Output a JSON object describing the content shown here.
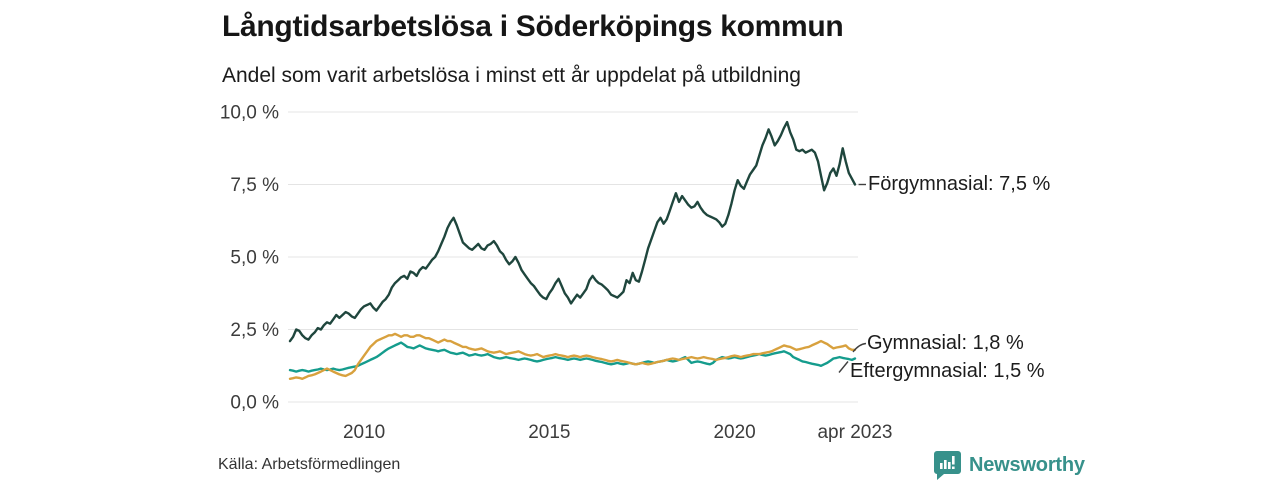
{
  "header": {
    "title": "Långtidsarbetslösa i Söderköpings kommun",
    "subtitle": "Andel som varit arbetslösa i minst ett år uppdelat på utbildning"
  },
  "source": {
    "label": "Källa: Arbetsförmedlingen"
  },
  "branding": {
    "name": "Newsworthy",
    "logo_icon": "bar-chart-speech-bubble-icon",
    "color": "#37918b"
  },
  "colors": {
    "grid": "#e4e4e4",
    "axis_text": "#3c3c3c",
    "annotation_text": "#1c1c1c",
    "connector": "#3f3f3f",
    "background": "#ffffff"
  },
  "chart_data": {
    "type": "line",
    "title": "Långtidsarbetslösa i Söderköpings kommun",
    "subtitle": "Andel som varit arbetslösa i minst ett år uppdelat på utbildning",
    "xlabel": "",
    "ylabel": "",
    "unit": "%",
    "grid": true,
    "legend_position": "end-of-line labels, right side",
    "x_axis": {
      "range": [
        2008,
        2023.25
      ],
      "ticks": [
        {
          "t": 2010,
          "label": "2010"
        },
        {
          "t": 2015,
          "label": "2015"
        },
        {
          "t": 2020,
          "label": "2020"
        },
        {
          "t": 2023.25,
          "label": "apr 2023"
        }
      ]
    },
    "y_axis": {
      "range": [
        0,
        10
      ],
      "ticks": [
        {
          "v": 10,
          "label": "10,0 %"
        },
        {
          "v": 7.5,
          "label": "7,5 %"
        },
        {
          "v": 5,
          "label": "5,0 %"
        },
        {
          "v": 2.5,
          "label": "2,5 %"
        },
        {
          "v": 0,
          "label": "0,0 %"
        }
      ]
    },
    "series": [
      {
        "id": "forgymnasial",
        "name": "Förgymnasial",
        "end_label": "Förgymnasial: 7,5 %",
        "end_value": 7.5,
        "color": "#1f463d",
        "start": 2008,
        "step_months": 1,
        "values": [
          2.1,
          2.25,
          2.5,
          2.45,
          2.3,
          2.2,
          2.15,
          2.3,
          2.4,
          2.55,
          2.5,
          2.65,
          2.75,
          2.7,
          2.85,
          3.0,
          2.9,
          3.0,
          3.1,
          3.05,
          2.95,
          2.9,
          3.05,
          3.2,
          3.3,
          3.35,
          3.4,
          3.25,
          3.15,
          3.3,
          3.45,
          3.55,
          3.7,
          3.95,
          4.1,
          4.2,
          4.3,
          4.35,
          4.25,
          4.5,
          4.45,
          4.35,
          4.55,
          4.65,
          4.6,
          4.75,
          4.9,
          5.0,
          5.2,
          5.45,
          5.7,
          6.0,
          6.2,
          6.35,
          6.1,
          5.8,
          5.5,
          5.4,
          5.3,
          5.25,
          5.35,
          5.45,
          5.3,
          5.25,
          5.4,
          5.45,
          5.55,
          5.4,
          5.2,
          5.1,
          4.9,
          4.75,
          4.85,
          5.0,
          4.8,
          4.55,
          4.4,
          4.25,
          4.1,
          4.0,
          3.85,
          3.7,
          3.6,
          3.55,
          3.75,
          3.9,
          4.1,
          4.25,
          4.0,
          3.75,
          3.6,
          3.4,
          3.55,
          3.7,
          3.6,
          3.75,
          3.9,
          4.2,
          4.35,
          4.2,
          4.1,
          4.05,
          3.95,
          3.85,
          3.7,
          3.65,
          3.6,
          3.7,
          3.8,
          4.2,
          4.1,
          4.45,
          4.2,
          4.15,
          4.5,
          4.9,
          5.3,
          5.6,
          5.9,
          6.2,
          6.35,
          6.15,
          6.3,
          6.6,
          6.9,
          7.2,
          6.9,
          7.1,
          6.95,
          6.8,
          6.7,
          6.75,
          6.9,
          6.7,
          6.55,
          6.45,
          6.4,
          6.35,
          6.3,
          6.2,
          6.05,
          6.15,
          6.45,
          6.85,
          7.3,
          7.65,
          7.45,
          7.35,
          7.6,
          7.85,
          8.0,
          8.15,
          8.5,
          8.85,
          9.1,
          9.4,
          9.15,
          8.85,
          9.0,
          9.2,
          9.45,
          9.65,
          9.3,
          9.05,
          8.7,
          8.65,
          8.7,
          8.6,
          8.65,
          8.7,
          8.6,
          8.3,
          7.8,
          7.3,
          7.55,
          7.9,
          8.05,
          7.8,
          8.2,
          8.75,
          8.3,
          7.9,
          7.7,
          7.5
        ]
      },
      {
        "id": "gymnasial",
        "name": "Gymnasial",
        "end_label": "Gymnasial: 1,8 %",
        "end_value": 1.8,
        "color": "#d8a13e",
        "start": 2008,
        "step_months": 1,
        "values": [
          0.8,
          0.82,
          0.85,
          0.83,
          0.8,
          0.85,
          0.9,
          0.92,
          0.95,
          1.0,
          1.05,
          1.1,
          1.15,
          1.1,
          1.05,
          1.0,
          0.95,
          0.92,
          0.9,
          0.95,
          1.0,
          1.1,
          1.3,
          1.45,
          1.6,
          1.75,
          1.9,
          2.0,
          2.1,
          2.15,
          2.2,
          2.25,
          2.3,
          2.3,
          2.35,
          2.3,
          2.25,
          2.3,
          2.3,
          2.25,
          2.25,
          2.3,
          2.3,
          2.25,
          2.2,
          2.2,
          2.15,
          2.1,
          2.05,
          2.1,
          2.15,
          2.1,
          2.1,
          2.05,
          2.0,
          1.95,
          1.9,
          1.9,
          1.85,
          1.82,
          1.8,
          1.82,
          1.85,
          1.8,
          1.75,
          1.72,
          1.7,
          1.72,
          1.75,
          1.7,
          1.65,
          1.68,
          1.7,
          1.72,
          1.75,
          1.7,
          1.65,
          1.62,
          1.6,
          1.62,
          1.65,
          1.6,
          1.55,
          1.58,
          1.6,
          1.62,
          1.65,
          1.62,
          1.6,
          1.58,
          1.55,
          1.58,
          1.6,
          1.58,
          1.55,
          1.58,
          1.6,
          1.58,
          1.55,
          1.52,
          1.5,
          1.48,
          1.45,
          1.42,
          1.4,
          1.42,
          1.45,
          1.42,
          1.4,
          1.38,
          1.35,
          1.32,
          1.3,
          1.32,
          1.35,
          1.32,
          1.3,
          1.32,
          1.35,
          1.38,
          1.4,
          1.42,
          1.45,
          1.48,
          1.5,
          1.48,
          1.45,
          1.48,
          1.5,
          1.52,
          1.55,
          1.52,
          1.5,
          1.52,
          1.55,
          1.52,
          1.5,
          1.48,
          1.45,
          1.48,
          1.5,
          1.52,
          1.55,
          1.58,
          1.6,
          1.58,
          1.55,
          1.58,
          1.6,
          1.62,
          1.65,
          1.65,
          1.65,
          1.68,
          1.7,
          1.72,
          1.75,
          1.8,
          1.85,
          1.9,
          1.95,
          1.92,
          1.9,
          1.85,
          1.8,
          1.82,
          1.85,
          1.88,
          1.9,
          1.95,
          2.0,
          2.05,
          2.1,
          2.05,
          2.0,
          1.92,
          1.85,
          1.88,
          1.9,
          1.92,
          1.95,
          1.85,
          1.8,
          1.8
        ]
      },
      {
        "id": "eftergymnasial",
        "name": "Eftergymnasial",
        "end_label": "Eftergymnasial: 1,5 %",
        "end_value": 1.5,
        "color": "#159c8d",
        "start": 2008,
        "step_months": 1,
        "values": [
          1.1,
          1.08,
          1.05,
          1.08,
          1.1,
          1.08,
          1.05,
          1.08,
          1.1,
          1.12,
          1.15,
          1.12,
          1.1,
          1.12,
          1.15,
          1.12,
          1.1,
          1.12,
          1.15,
          1.18,
          1.2,
          1.22,
          1.25,
          1.3,
          1.35,
          1.4,
          1.45,
          1.5,
          1.55,
          1.62,
          1.7,
          1.78,
          1.85,
          1.9,
          1.95,
          2.0,
          2.05,
          1.98,
          1.9,
          1.88,
          1.85,
          1.9,
          1.95,
          1.9,
          1.85,
          1.82,
          1.8,
          1.78,
          1.75,
          1.78,
          1.8,
          1.75,
          1.7,
          1.68,
          1.65,
          1.68,
          1.7,
          1.65,
          1.6,
          1.62,
          1.65,
          1.62,
          1.6,
          1.62,
          1.65,
          1.6,
          1.55,
          1.52,
          1.5,
          1.52,
          1.55,
          1.52,
          1.5,
          1.48,
          1.45,
          1.48,
          1.5,
          1.48,
          1.45,
          1.42,
          1.4,
          1.42,
          1.45,
          1.48,
          1.5,
          1.52,
          1.55,
          1.52,
          1.5,
          1.48,
          1.45,
          1.48,
          1.5,
          1.48,
          1.45,
          1.48,
          1.5,
          1.48,
          1.45,
          1.42,
          1.4,
          1.38,
          1.35,
          1.32,
          1.3,
          1.32,
          1.35,
          1.32,
          1.3,
          1.32,
          1.35,
          1.32,
          1.3,
          1.32,
          1.35,
          1.38,
          1.4,
          1.38,
          1.35,
          1.38,
          1.4,
          1.42,
          1.45,
          1.42,
          1.4,
          1.42,
          1.45,
          1.5,
          1.55,
          1.45,
          1.35,
          1.38,
          1.4,
          1.38,
          1.35,
          1.32,
          1.3,
          1.35,
          1.45,
          1.5,
          1.55,
          1.52,
          1.5,
          1.52,
          1.55,
          1.52,
          1.5,
          1.52,
          1.55,
          1.58,
          1.6,
          1.62,
          1.65,
          1.62,
          1.6,
          1.62,
          1.65,
          1.68,
          1.7,
          1.72,
          1.75,
          1.7,
          1.65,
          1.55,
          1.5,
          1.45,
          1.4,
          1.38,
          1.35,
          1.32,
          1.3,
          1.28,
          1.25,
          1.3,
          1.35,
          1.42,
          1.5,
          1.52,
          1.55,
          1.52,
          1.5,
          1.48,
          1.45,
          1.5
        ]
      }
    ]
  }
}
